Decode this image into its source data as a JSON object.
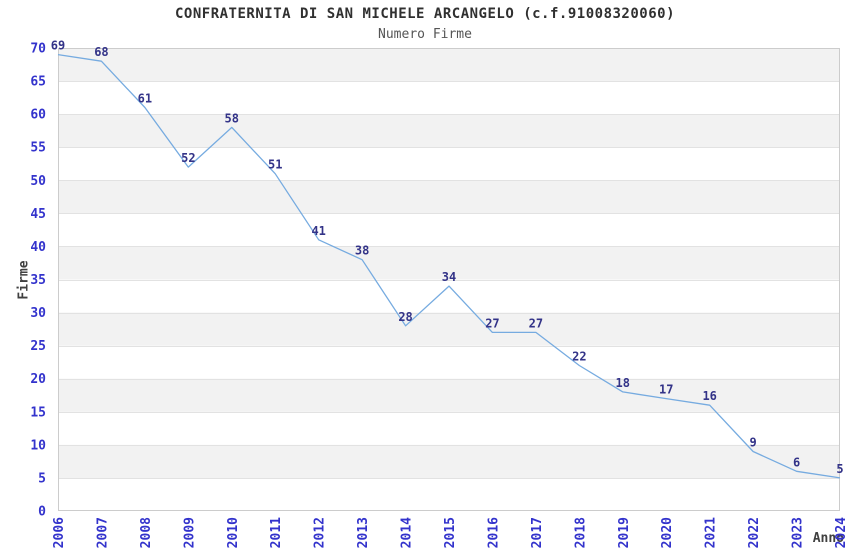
{
  "header": {
    "title": "CONFRATERNITA DI SAN MICHELE ARCANGELO (c.f.91008320060)",
    "subtitle": "Numero Firme"
  },
  "chart_data": {
    "type": "line",
    "title": "CONFRATERNITA DI SAN MICHELE ARCANGELO (c.f.91008320060)",
    "subtitle": "Numero Firme",
    "xlabel": "Anno",
    "ylabel": "Firme",
    "x": [
      "2006",
      "2007",
      "2008",
      "2009",
      "2010",
      "2011",
      "2012",
      "2013",
      "2014",
      "2015",
      "2016",
      "2017",
      "2018",
      "2019",
      "2020",
      "2021",
      "2022",
      "2023",
      "2024"
    ],
    "values": [
      69,
      68,
      61,
      52,
      58,
      51,
      41,
      38,
      28,
      34,
      27,
      27,
      22,
      18,
      17,
      16,
      9,
      6,
      5
    ],
    "ylim": [
      0,
      70
    ],
    "ytick_step": 5,
    "grid": true,
    "legend_position": "none",
    "point_labels_visible": true,
    "colors": {
      "line": "#76abe0",
      "tick_label": "#3333cc",
      "point_label": "#333388",
      "band": "#f2f2f2",
      "gridline": "#e2e2e2",
      "plot_border": "#cccccc",
      "title": "#303030",
      "subtitle": "#555555",
      "axis_title": "#404040",
      "background": "#ffffff"
    }
  }
}
